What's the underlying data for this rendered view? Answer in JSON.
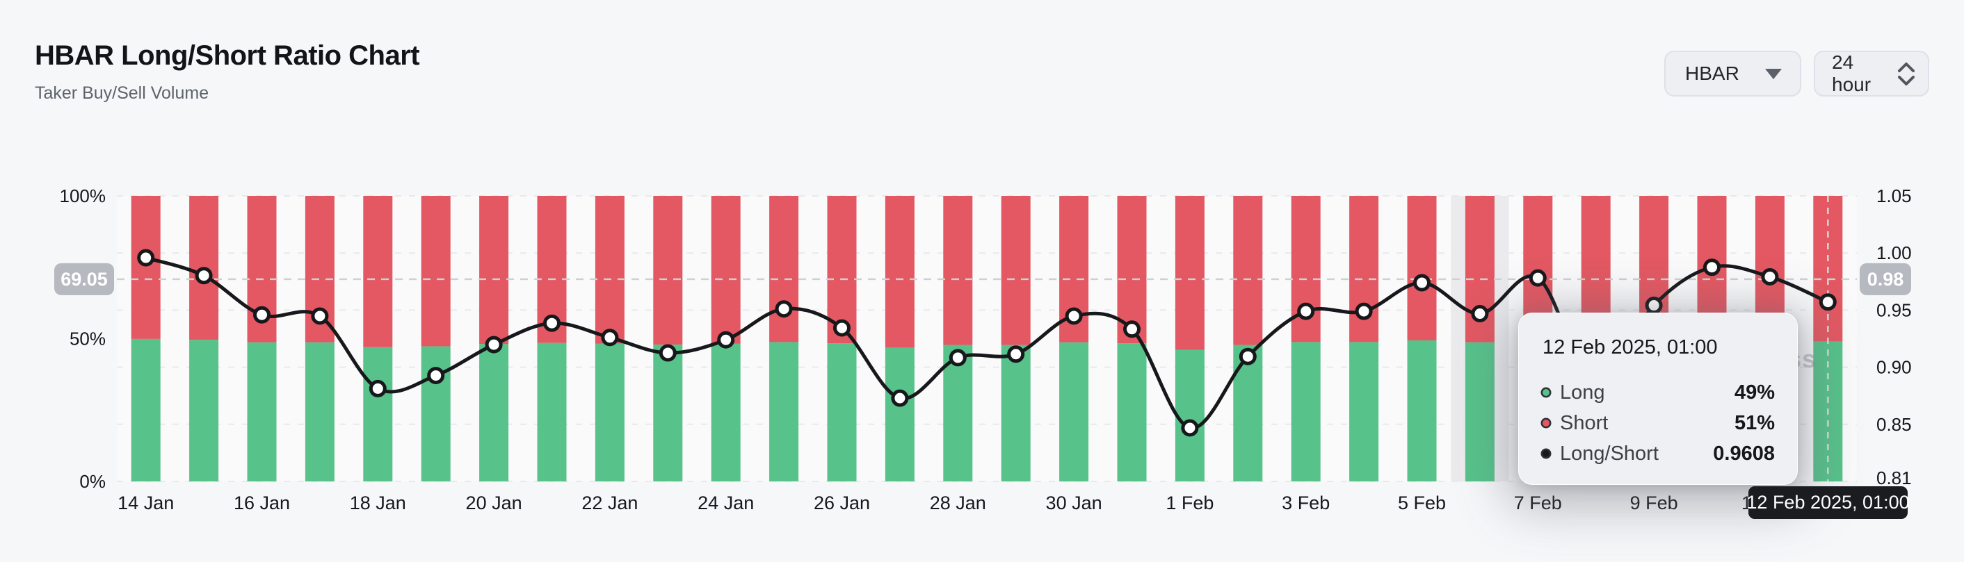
{
  "header": {
    "title": "HBAR Long/Short Ratio Chart",
    "subtitle": "Taker Buy/Sell Volume"
  },
  "controls": {
    "symbol_value": "HBAR",
    "interval_value": "24 hour"
  },
  "watermark": "coinglass",
  "left_axis": {
    "ticks": [
      "100%",
      "50%",
      "0%"
    ],
    "crosshair_label": "69.05"
  },
  "right_axis": {
    "ticks": [
      "1.05",
      "1.00",
      "0.95",
      "0.90",
      "0.85",
      "0.81"
    ],
    "crosshair_label": "0.98"
  },
  "crosshair": {
    "ratio_value": 0.98
  },
  "x_axis": {
    "selected_label": "12 Feb 2025, 01:00"
  },
  "tooltip": {
    "title": "12 Feb 2025, 01:00",
    "rows": [
      {
        "label": "Long",
        "value": "49%",
        "color": "#57c28a"
      },
      {
        "label": "Short",
        "value": "51%",
        "color": "#e35862"
      },
      {
        "label": "Long/Short",
        "value": "0.9608",
        "color": "#17191d"
      }
    ]
  },
  "colors": {
    "long": "#57c28a",
    "short": "#e35862",
    "ratio_line": "#17181b",
    "marker_fill": "#ffffff",
    "grid": "#e8e9ec",
    "crosshair": "#cdd0d4",
    "selected_line": "#d6d8db",
    "highlight_band": "rgba(128,134,144,0.12)",
    "axis_text": "#15171b",
    "pill_bg": "#b6bac0",
    "pill_text": "#ffffff",
    "plot_bg": "#fafafb"
  },
  "chart_data": {
    "type": "bar",
    "subtype": "stacked-percent-with-ratio-line",
    "title": "HBAR Long/Short Ratio Chart",
    "categories": [
      "14 Jan",
      "15 Jan",
      "16 Jan",
      "17 Jan",
      "18 Jan",
      "19 Jan",
      "20 Jan",
      "21 Jan",
      "22 Jan",
      "23 Jan",
      "24 Jan",
      "25 Jan",
      "26 Jan",
      "27 Jan",
      "28 Jan",
      "29 Jan",
      "30 Jan",
      "31 Jan",
      "1 Feb",
      "2 Feb",
      "3 Feb",
      "4 Feb",
      "5 Feb",
      "6 Feb",
      "7 Feb",
      "8 Feb",
      "9 Feb",
      "10 Feb",
      "11 Feb",
      "12 Feb"
    ],
    "series": [
      {
        "name": "Long",
        "unit": "%",
        "values": [
          49.9,
          49.6,
          48.7,
          48.7,
          47.0,
          47.3,
          48.1,
          48.5,
          48.2,
          47.9,
          48.2,
          48.8,
          48.4,
          46.8,
          47.8,
          47.8,
          48.7,
          48.4,
          46.1,
          47.8,
          48.8,
          48.8,
          49.4,
          48.7,
          49.5,
          47.1,
          48.9,
          49.7,
          49.5,
          49.0
        ]
      },
      {
        "name": "Short",
        "unit": "%",
        "values": [
          50.1,
          50.4,
          51.3,
          51.3,
          53.0,
          52.7,
          51.9,
          51.5,
          51.8,
          52.1,
          51.8,
          51.2,
          51.6,
          53.2,
          52.2,
          52.2,
          51.3,
          51.6,
          53.9,
          52.2,
          51.2,
          51.2,
          50.6,
          51.3,
          50.5,
          52.9,
          51.1,
          50.3,
          50.5,
          51.0
        ]
      },
      {
        "name": "Long/Short",
        "type": "line",
        "values": [
          0.998,
          0.983,
          0.95,
          0.949,
          0.888,
          0.899,
          0.925,
          0.943,
          0.931,
          0.918,
          0.929,
          0.955,
          0.939,
          0.88,
          0.914,
          0.917,
          0.949,
          0.938,
          0.855,
          0.915,
          0.953,
          0.953,
          0.977,
          0.951,
          0.981,
          0.89,
          0.958,
          0.99,
          0.982,
          0.9608
        ]
      }
    ],
    "left_ylim_percent": [
      0,
      100
    ],
    "right_ylim_ratio": [
      0.81,
      1.05
    ],
    "grid": true,
    "legend_position": "none",
    "selected_index": 29,
    "highlight_band_index": 23,
    "xtick_every": 2
  }
}
